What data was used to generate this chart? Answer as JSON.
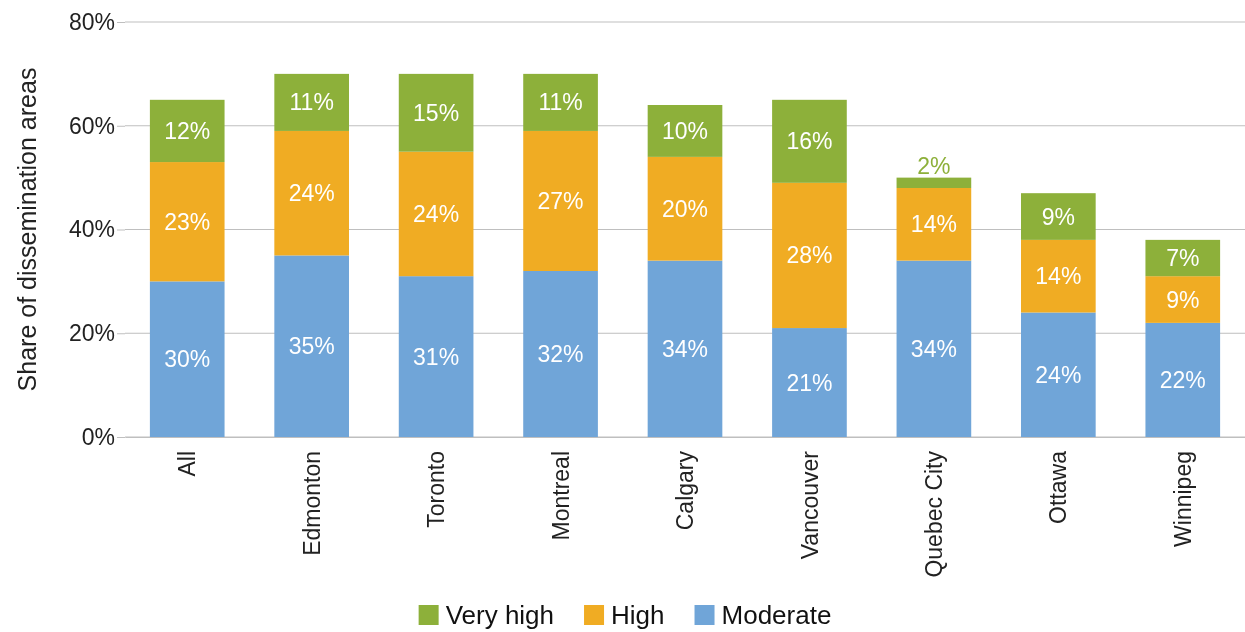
{
  "chart_data": {
    "type": "bar",
    "stacked": true,
    "ylabel": "Share of dissemination areas",
    "categories": [
      "All",
      "Edmonton",
      "Toronto",
      "Montreal",
      "Calgary",
      "Vancouver",
      "Quebec City",
      "Ottawa",
      "Winnipeg"
    ],
    "series": [
      {
        "name": "Moderate",
        "color": "#70a5d8",
        "values": [
          30,
          35,
          31,
          32,
          34,
          21,
          34,
          24,
          22
        ]
      },
      {
        "name": "High",
        "color": "#f0ac23",
        "values": [
          23,
          24,
          24,
          27,
          20,
          28,
          14,
          14,
          9
        ]
      },
      {
        "name": "Very high",
        "color": "#8db03a",
        "values": [
          12,
          11,
          15,
          11,
          10,
          16,
          2,
          9,
          7
        ]
      }
    ],
    "ylim": [
      0,
      80
    ],
    "yticks": [
      {
        "value": 0,
        "label": "0%"
      },
      {
        "value": 20,
        "label": "20%"
      },
      {
        "value": 40,
        "label": "40%"
      },
      {
        "value": 60,
        "label": "60%"
      },
      {
        "value": 80,
        "label": "80%"
      }
    ],
    "grid": "y",
    "legend": "bottom",
    "value_labels": [
      [
        "30%",
        "35%",
        "31%",
        "32%",
        "34%",
        "21%",
        "34%",
        "24%",
        "22%"
      ],
      [
        "23%",
        "24%",
        "24%",
        "27%",
        "20%",
        "28%",
        "14%",
        "14%",
        "9%"
      ],
      [
        "12%",
        "11%",
        "15%",
        "11%",
        "10%",
        "16%",
        "2%",
        "9%",
        "7%"
      ]
    ]
  }
}
